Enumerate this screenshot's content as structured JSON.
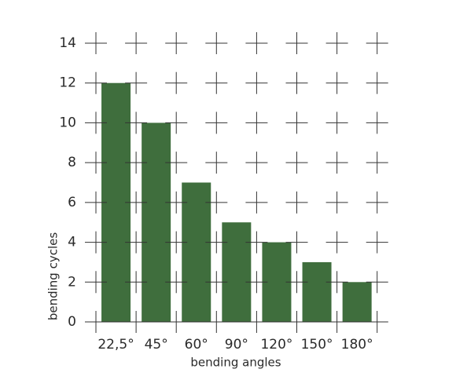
{
  "chart_data": {
    "type": "bar",
    "categories": [
      "22,5°",
      "45°",
      "60°",
      "90°",
      "120°",
      "150°",
      "180°"
    ],
    "values": [
      12,
      10,
      7,
      5,
      4,
      3,
      2
    ],
    "color": "#3f6e3d",
    "x_label": "bending angles",
    "y_label": "bending cycles",
    "ylim": [
      0,
      14
    ],
    "yticks": [
      0,
      2,
      4,
      6,
      8,
      10,
      12,
      14
    ],
    "grid": true
  }
}
